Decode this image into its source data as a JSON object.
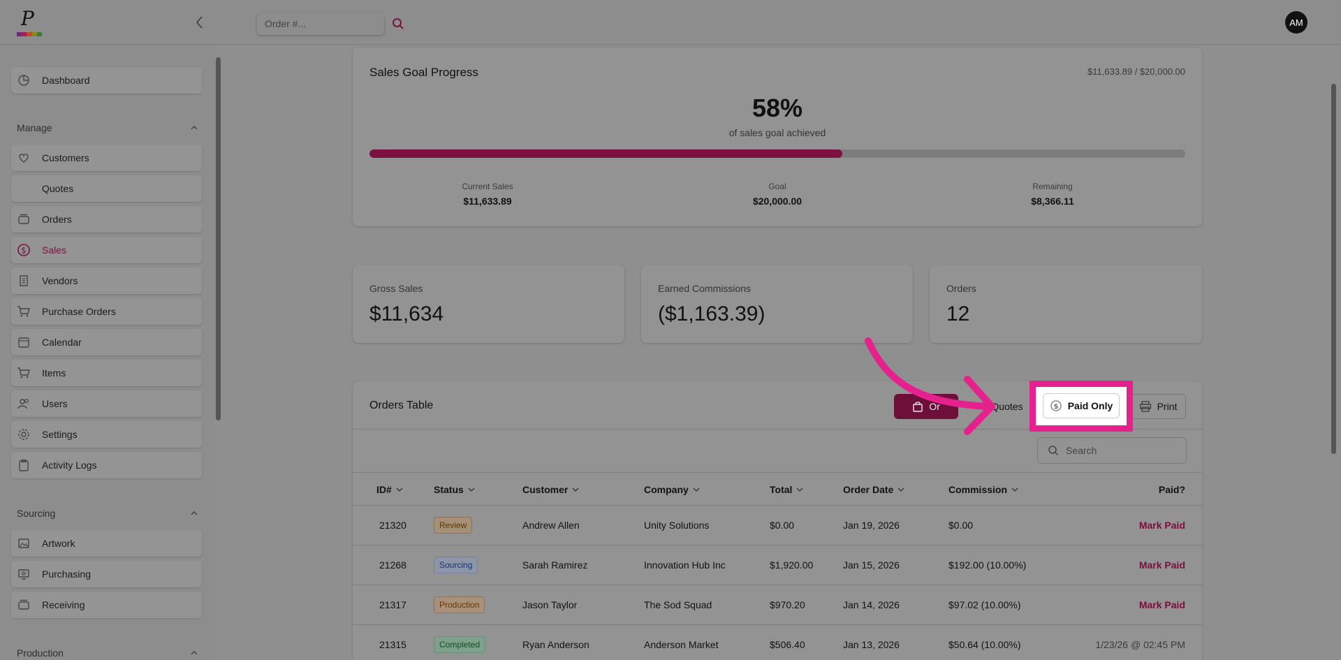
{
  "topbar": {
    "search_placeholder": "Order #...",
    "avatar_initials": "AM",
    "logo_letter": "P"
  },
  "sidebar": {
    "dashboard": "Dashboard",
    "sections": [
      {
        "title": "Manage",
        "items": [
          "Customers",
          "Quotes",
          "Orders",
          "Sales",
          "Vendors",
          "Purchase Orders",
          "Calendar",
          "Items",
          "Users",
          "Settings",
          "Activity Logs"
        ]
      },
      {
        "title": "Sourcing",
        "items": [
          "Artwork",
          "Purchasing",
          "Receiving"
        ]
      },
      {
        "title": "Production",
        "items": []
      }
    ],
    "active_item": "Sales"
  },
  "goal": {
    "title": "Sales Goal Progress",
    "ratio": "$11,633.89 / $20,000.00",
    "percent_text": "58%",
    "percent_value": 58,
    "subtitle": "of sales goal achieved",
    "current_label": "Current Sales",
    "current_value": "$11,633.89",
    "goal_label": "Goal",
    "goal_value": "$20,000.00",
    "remaining_label": "Remaining",
    "remaining_value": "$8,366.11"
  },
  "stats": {
    "gross_label": "Gross Sales",
    "gross_value": "$11,634",
    "commission_label": "Earned Commissions",
    "commission_value": "($1,163.39)",
    "orders_label": "Orders",
    "orders_value": "12"
  },
  "orders_table": {
    "title": "Orders Table",
    "btn_orders": "Or",
    "btn_quotes": "Quotes",
    "btn_paid_only": "Paid Only",
    "btn_print": "Print",
    "search_placeholder": "Search",
    "columns": [
      "ID#",
      "Status",
      "Customer",
      "Company",
      "Total",
      "Order Date",
      "Commission",
      "Paid?"
    ],
    "rows": [
      {
        "id": "21320",
        "status": "Review",
        "customer": "Andrew Allen",
        "company": "Unity Solutions",
        "total": "$0.00",
        "date": "Jan 19, 2026",
        "commission": "$0.00",
        "paid": "Mark Paid"
      },
      {
        "id": "21268",
        "status": "Sourcing",
        "customer": "Sarah Ramirez",
        "company": "Innovation Hub Inc",
        "total": "$1,920.00",
        "date": "Jan 15, 2026",
        "commission": "$192.00 (10.00%)",
        "paid": "Mark Paid"
      },
      {
        "id": "21317",
        "status": "Production",
        "customer": "Jason Taylor",
        "company": "The Sod Squad",
        "total": "$970.20",
        "date": "Jan 14, 2026",
        "commission": "$97.02 (10.00%)",
        "paid": "Mark Paid"
      },
      {
        "id": "21315",
        "status": "Completed",
        "customer": "Ryan Anderson",
        "company": "Anderson Market",
        "total": "$506.40",
        "date": "Jan 13, 2026",
        "commission": "$50.64 (10.00%)",
        "paid": "1/23/26 @ 02:45 PM"
      }
    ]
  },
  "colors": {
    "accent": "#e5218d",
    "brand": "#7a1240",
    "overlay": "#8f8f8f"
  }
}
